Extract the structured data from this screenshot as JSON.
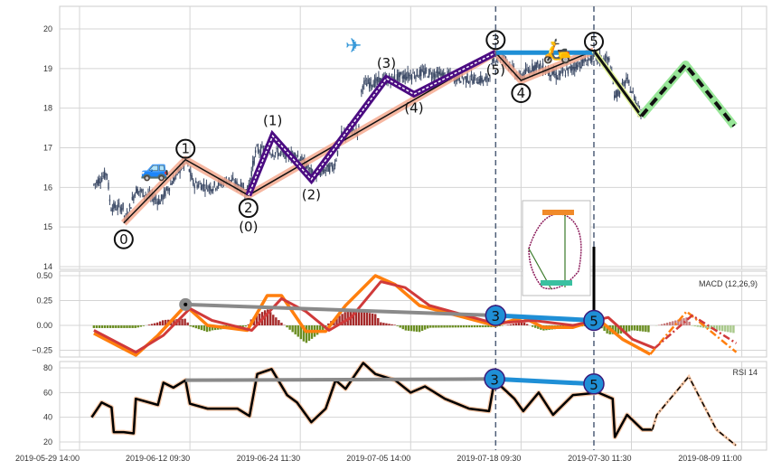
{
  "chart_data": {
    "type": "line",
    "title": "",
    "x_ticks": [
      "2019-05-29 14:00",
      "2019-06-12 09:30",
      "2019-06-24 11:30",
      "2019-07-05 14:00",
      "2019-07-18 09:30",
      "2019-07-30 11:30",
      "2019-08-09 11:00"
    ],
    "x_unit": "tick index",
    "price_panel": {
      "ylim": [
        14,
        20.6
      ],
      "y_ticks": [
        "14",
        "15",
        "16",
        "17",
        "18",
        "19",
        "20"
      ],
      "price_path": [
        [
          0.13,
          16.07
        ],
        [
          0.25,
          16.37
        ],
        [
          0.28,
          15.5
        ],
        [
          0.4,
          15.5
        ],
        [
          0.41,
          15.1
        ],
        [
          0.51,
          15.95
        ],
        [
          0.73,
          15.65
        ],
        [
          0.92,
          16.5
        ],
        [
          0.97,
          16.65
        ],
        [
          1.03,
          16.1
        ],
        [
          1.19,
          16.0
        ],
        [
          1.35,
          16.2
        ],
        [
          1.52,
          15.9
        ],
        [
          1.6,
          16.95
        ],
        [
          1.98,
          16.8
        ],
        [
          2.12,
          16.3
        ],
        [
          2.31,
          16.55
        ],
        [
          2.37,
          17.3
        ],
        [
          2.53,
          17.45
        ],
        [
          2.56,
          18.6
        ],
        [
          2.77,
          18.7
        ],
        [
          2.83,
          18.76
        ],
        [
          3.13,
          18.9
        ],
        [
          3.46,
          18.76
        ],
        [
          3.7,
          18.7
        ],
        [
          3.76,
          19.37
        ],
        [
          3.87,
          19.2
        ],
        [
          3.98,
          18.76
        ],
        [
          4.14,
          19.1
        ],
        [
          4.33,
          18.8
        ],
        [
          4.52,
          19.1
        ],
        [
          4.66,
          19.3
        ],
        [
          4.8,
          19.2
        ],
        [
          4.85,
          18.3
        ],
        [
          4.96,
          18.7
        ],
        [
          5.09,
          17.85
        ]
      ],
      "main_wave": {
        "labels": [
          "0",
          "1",
          "2",
          "3",
          "4",
          "5"
        ],
        "points": [
          [
            0.4,
            15.1
          ],
          [
            0.96,
            16.7
          ],
          [
            1.53,
            15.8
          ],
          [
            3.77,
            19.4
          ],
          [
            4.0,
            18.7
          ],
          [
            4.66,
            19.45
          ]
        ]
      },
      "sub_wave": {
        "labels": [
          "(0)",
          "(1)",
          "(2)",
          "(3)",
          "(4)",
          "(5)"
        ],
        "points": [
          [
            1.53,
            15.8
          ],
          [
            1.75,
            17.3
          ],
          [
            2.1,
            16.2
          ],
          [
            2.78,
            18.75
          ],
          [
            3.03,
            18.35
          ],
          [
            3.77,
            19.4
          ]
        ]
      },
      "correction": [
        [
          4.66,
          19.45
        ],
        [
          5.09,
          17.8
        ]
      ],
      "projection": [
        [
          5.09,
          17.8
        ],
        [
          5.49,
          19.1
        ],
        [
          5.93,
          17.55
        ]
      ],
      "divergence_markers": [
        3.77,
        4.66
      ],
      "icons": [
        "car-icon",
        "airplane-icon",
        "scooter-icon",
        "roller-coaster-icon"
      ]
    },
    "macd_panel": {
      "label": "MACD (12,26,9)",
      "y_ticks": [
        "0.50",
        "0.25",
        "0.00",
        "−0.25"
      ],
      "ylim": [
        -0.32,
        0.56
      ],
      "macd": [
        [
          0.13,
          -0.08
        ],
        [
          0.51,
          -0.3
        ],
        [
          0.71,
          -0.1
        ],
        [
          0.96,
          0.2
        ],
        [
          1.16,
          0
        ],
        [
          1.52,
          -0.05
        ],
        [
          1.7,
          0.3
        ],
        [
          1.83,
          0.3
        ],
        [
          2.05,
          -0.06
        ],
        [
          2.23,
          -0.06
        ],
        [
          2.41,
          0.2
        ],
        [
          2.68,
          0.5
        ],
        [
          2.86,
          0.41
        ],
        [
          3.08,
          0.2
        ],
        [
          3.76,
          0
        ],
        [
          4.02,
          0.08
        ],
        [
          4.2,
          -0.02
        ],
        [
          4.47,
          -0.02
        ],
        [
          4.7,
          0.06
        ],
        [
          4.92,
          -0.14
        ],
        [
          5.17,
          -0.29
        ]
      ],
      "macd_projection": [
        [
          5.17,
          -0.29
        ],
        [
          5.5,
          0.14
        ],
        [
          5.95,
          -0.27
        ]
      ],
      "signal": [
        [
          0.13,
          -0.05
        ],
        [
          0.51,
          -0.27
        ],
        [
          0.76,
          -0.1
        ],
        [
          1.0,
          0.17
        ],
        [
          1.2,
          0.05
        ],
        [
          1.56,
          -0.05
        ],
        [
          1.83,
          0.27
        ],
        [
          2.05,
          0.14
        ],
        [
          2.26,
          -0.05
        ],
        [
          2.46,
          0.08
        ],
        [
          2.73,
          0.44
        ],
        [
          2.95,
          0.38
        ],
        [
          3.17,
          0.2
        ],
        [
          3.76,
          0.02
        ],
        [
          4.11,
          0.05
        ],
        [
          4.47,
          0
        ],
        [
          4.79,
          0.08
        ],
        [
          5.01,
          -0.14
        ],
        [
          5.21,
          -0.23
        ]
      ],
      "signal_projection": [
        [
          5.21,
          -0.23
        ],
        [
          5.55,
          0.1
        ],
        [
          5.95,
          -0.18
        ]
      ],
      "divergence": {
        "gray": [
          [
            0.96,
            0.21
          ],
          [
            3.77,
            0.1
          ]
        ],
        "blue": [
          [
            3.77,
            0.1
          ],
          [
            4.66,
            0.05
          ]
        ],
        "labels": [
          "3",
          "5"
        ]
      }
    },
    "rsi_panel": {
      "label": "RSI 14",
      "y_ticks": [
        "80",
        "60",
        "40",
        "20"
      ],
      "ylim": [
        12,
        86
      ],
      "rsi": [
        [
          0.11,
          40
        ],
        [
          0.2,
          52
        ],
        [
          0.29,
          48
        ],
        [
          0.31,
          28
        ],
        [
          0.4,
          28
        ],
        [
          0.49,
          27
        ],
        [
          0.51,
          55
        ],
        [
          0.71,
          50
        ],
        [
          0.76,
          68
        ],
        [
          0.85,
          64
        ],
        [
          0.96,
          70
        ],
        [
          1.0,
          51
        ],
        [
          1.16,
          47
        ],
        [
          1.43,
          47
        ],
        [
          1.54,
          41
        ],
        [
          1.61,
          75
        ],
        [
          1.74,
          79
        ],
        [
          1.88,
          58
        ],
        [
          1.97,
          52
        ],
        [
          2.1,
          36
        ],
        [
          2.23,
          47
        ],
        [
          2.32,
          70
        ],
        [
          2.41,
          63
        ],
        [
          2.57,
          84
        ],
        [
          2.68,
          75
        ],
        [
          2.86,
          70
        ],
        [
          3.0,
          60
        ],
        [
          3.13,
          65
        ],
        [
          3.31,
          55
        ],
        [
          3.53,
          47
        ],
        [
          3.71,
          45
        ],
        [
          3.76,
          70
        ],
        [
          3.94,
          55
        ],
        [
          4.02,
          45
        ],
        [
          4.16,
          60
        ],
        [
          4.29,
          42
        ],
        [
          4.47,
          58
        ],
        [
          4.7,
          60
        ],
        [
          4.83,
          55
        ],
        [
          4.85,
          24
        ],
        [
          4.96,
          42
        ],
        [
          5.1,
          30
        ],
        [
          5.19,
          30
        ]
      ],
      "rsi_projection": [
        [
          5.19,
          30
        ],
        [
          5.23,
          42
        ],
        [
          5.52,
          73
        ],
        [
          5.77,
          30
        ],
        [
          5.95,
          17
        ]
      ],
      "divergence": {
        "gray": [
          [
            0.96,
            70
          ],
          [
            3.76,
            71
          ]
        ],
        "blue": [
          [
            3.76,
            71
          ],
          [
            4.66,
            67
          ]
        ],
        "labels": [
          "3",
          "5"
        ]
      }
    },
    "colors": {
      "candle": "#3c4a66",
      "wave": "#f4a58a",
      "sub_wave": "#4b0c82",
      "blue": "#1f8fd6",
      "gray": "#8a8a8a",
      "macd": "#ff7f0e",
      "signal": "#d03a3a",
      "hist_pos": "#a52a2a",
      "hist_neg": "#6b8e23",
      "projection": "#98e698",
      "dash_line": "#4f5f78"
    }
  }
}
